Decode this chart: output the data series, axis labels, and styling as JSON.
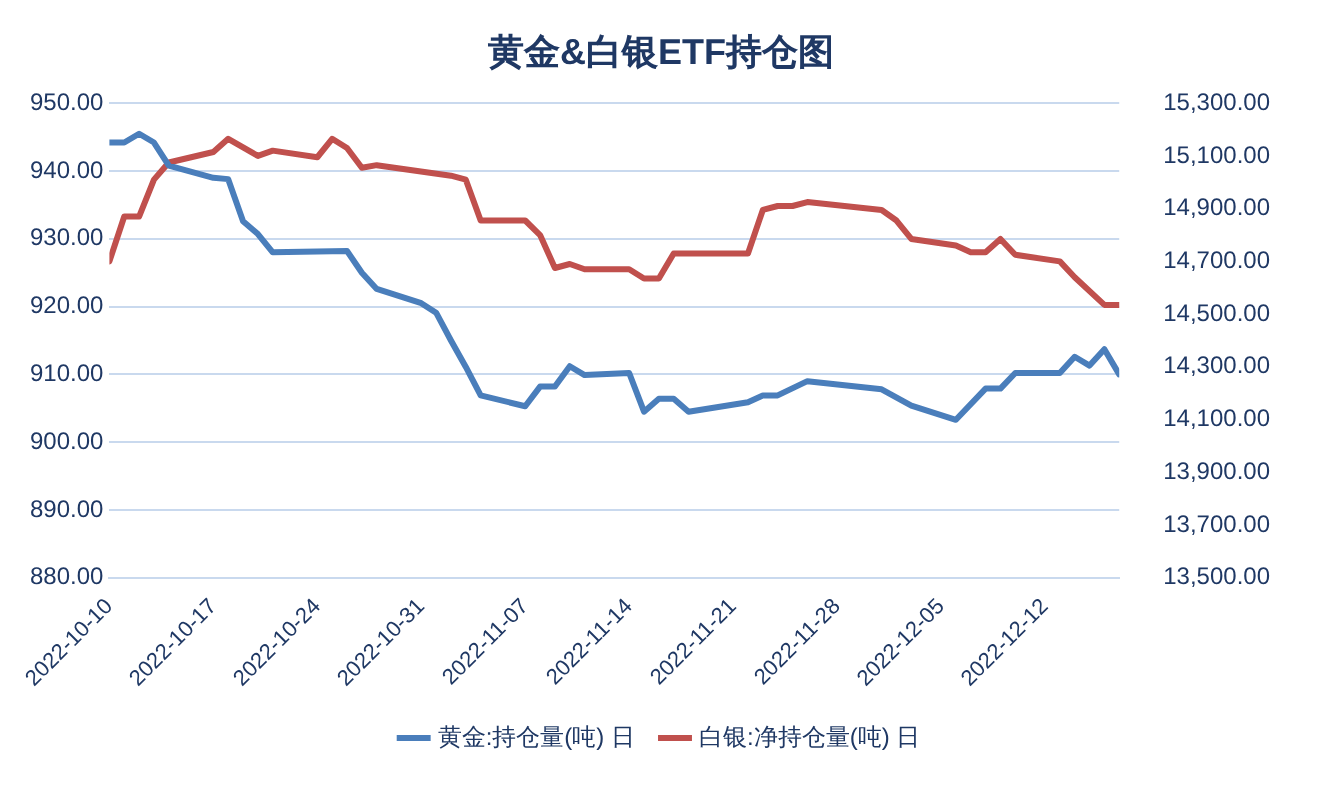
{
  "chart_data": {
    "type": "line",
    "title": "黄金&白银ETF持仓图",
    "xlim": [
      "2022-10-10",
      "2022-12-17"
    ],
    "xticks": [
      "2022-10-10",
      "2022-10-17",
      "2022-10-24",
      "2022-10-31",
      "2022-11-07",
      "2022-11-14",
      "2022-11-21",
      "2022-11-28",
      "2022-12-05",
      "2022-12-12"
    ],
    "ylim": [
      880,
      950
    ],
    "yticks": [
      {
        "value": 880,
        "label": "880.00"
      },
      {
        "value": 890,
        "label": "890.00"
      },
      {
        "value": 900,
        "label": "900.00"
      },
      {
        "value": 910,
        "label": "910.00"
      },
      {
        "value": 920,
        "label": "920.00"
      },
      {
        "value": 930,
        "label": "930.00"
      },
      {
        "value": 940,
        "label": "940.00"
      },
      {
        "value": 950,
        "label": "950.00"
      }
    ],
    "y2lim": [
      13500,
      15300
    ],
    "y2ticks": [
      {
        "value": 13500,
        "label": "13,500.00"
      },
      {
        "value": 13700,
        "label": "13,700.00"
      },
      {
        "value": 13900,
        "label": "13,900.00"
      },
      {
        "value": 14100,
        "label": "14,100.00"
      },
      {
        "value": 14300,
        "label": "14,300.00"
      },
      {
        "value": 14500,
        "label": "14,500.00"
      },
      {
        "value": 14700,
        "label": "14,700.00"
      },
      {
        "value": 14900,
        "label": "14,900.00"
      },
      {
        "value": 15100,
        "label": "15,100.00"
      },
      {
        "value": 15300,
        "label": "15,300.00"
      }
    ],
    "grid": "y",
    "legend": "bottom",
    "marker": "none",
    "line_style": "solid",
    "series": [
      {
        "name": "黄金:持仓量(吨) 日",
        "color": "#4a7ebb",
        "x": [
          "2022-10-10",
          "2022-10-11",
          "2022-10-12",
          "2022-10-13",
          "2022-10-14",
          "2022-10-17",
          "2022-10-18",
          "2022-10-19",
          "2022-10-20",
          "2022-10-21",
          "2022-10-26",
          "2022-10-27",
          "2022-10-28",
          "2022-10-31",
          "2022-11-01",
          "2022-11-02",
          "2022-11-03",
          "2022-11-04",
          "2022-11-07",
          "2022-11-08",
          "2022-11-09",
          "2022-11-10",
          "2022-11-11",
          "2022-11-14",
          "2022-11-15",
          "2022-11-16",
          "2022-11-17",
          "2022-11-18",
          "2022-11-22",
          "2022-11-23",
          "2022-11-24",
          "2022-11-26",
          "2022-12-01",
          "2022-12-03",
          "2022-12-06",
          "2022-12-08",
          "2022-12-09",
          "2022-12-10",
          "2022-12-13",
          "2022-12-14",
          "2022-12-15",
          "2022-12-16",
          "2022-12-17"
        ],
        "values": [
          944.2,
          944.2,
          945.5,
          944.2,
          940.8,
          939.0,
          938.8,
          932.6,
          930.7,
          928.0,
          928.2,
          925.0,
          922.6,
          920.5,
          919.1,
          915.0,
          911.1,
          906.9,
          905.3,
          908.2,
          908.2,
          911.2,
          909.9,
          910.2,
          904.5,
          906.4,
          906.4,
          904.5,
          905.9,
          906.9,
          906.9,
          909.0,
          907.8,
          905.4,
          903.3,
          907.9,
          907.9,
          910.2,
          910.2,
          912.6,
          911.3,
          913.7,
          910.0
        ]
      },
      {
        "name": "白银:净持仓量(吨) 日",
        "color": "#c0504d",
        "axis": "y2",
        "x": [
          "2022-10-10",
          "2022-10-11",
          "2022-10-12",
          "2022-10-13",
          "2022-10-14",
          "2022-10-17",
          "2022-10-18",
          "2022-10-20",
          "2022-10-21",
          "2022-10-24",
          "2022-10-25",
          "2022-10-26",
          "2022-10-27",
          "2022-10-28",
          "2022-11-02",
          "2022-11-03",
          "2022-11-04",
          "2022-11-07",
          "2022-11-08",
          "2022-11-09",
          "2022-11-10",
          "2022-11-11",
          "2022-11-14",
          "2022-11-15",
          "2022-11-16",
          "2022-11-17",
          "2022-11-22",
          "2022-11-23",
          "2022-11-24",
          "2022-11-25",
          "2022-11-26",
          "2022-12-01",
          "2022-12-02",
          "2022-12-03",
          "2022-12-06",
          "2022-12-07",
          "2022-12-08",
          "2022-12-09",
          "2022-12-10",
          "2022-12-13",
          "2022-12-14",
          "2022-12-16",
          "2022-12-17"
        ],
        "values": [
          14700,
          14870,
          14870,
          15010,
          15075,
          15115,
          15165,
          15100,
          15120,
          15095,
          15165,
          15130,
          15055,
          15065,
          15025,
          15010,
          14855,
          14855,
          14800,
          14675,
          14690,
          14670,
          14670,
          14635,
          14635,
          14730,
          14730,
          14895,
          14910,
          14910,
          14925,
          14895,
          14855,
          14785,
          14760,
          14735,
          14735,
          14785,
          14725,
          14700,
          14640,
          14535,
          14535
        ]
      }
    ]
  }
}
